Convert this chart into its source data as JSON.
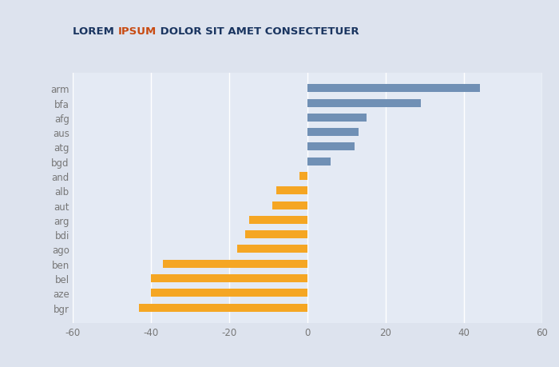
{
  "categories": [
    "arm",
    "bfa",
    "afg",
    "aus",
    "atg",
    "bgd",
    "and",
    "alb",
    "aut",
    "arg",
    "bdi",
    "ago",
    "ben",
    "bel",
    "aze",
    "bgr"
  ],
  "values": [
    44,
    29,
    15,
    13,
    12,
    6,
    -2,
    -8,
    -9,
    -15,
    -16,
    -18,
    -37,
    -40,
    -40,
    -43
  ],
  "positive_color": "#7090b5",
  "negative_color": "#f5a623",
  "background_color": "#dde3ee",
  "plot_bg_color": "#e4eaf4",
  "title_part1": "LOREM ",
  "title_part2": "IPSUM",
  "title_part3": " DOLOR SIT AMET CONSECTETUER",
  "title_color1": "#1a3560",
  "title_color2": "#c84b12",
  "title_fontsize": 9.5,
  "xlim": [
    -60,
    60
  ],
  "xticks": [
    -60,
    -40,
    -20,
    0,
    20,
    40,
    60
  ],
  "grid_color": "#ffffff",
  "tick_color": "#777777",
  "label_fontsize": 8.5,
  "bar_height": 0.55
}
